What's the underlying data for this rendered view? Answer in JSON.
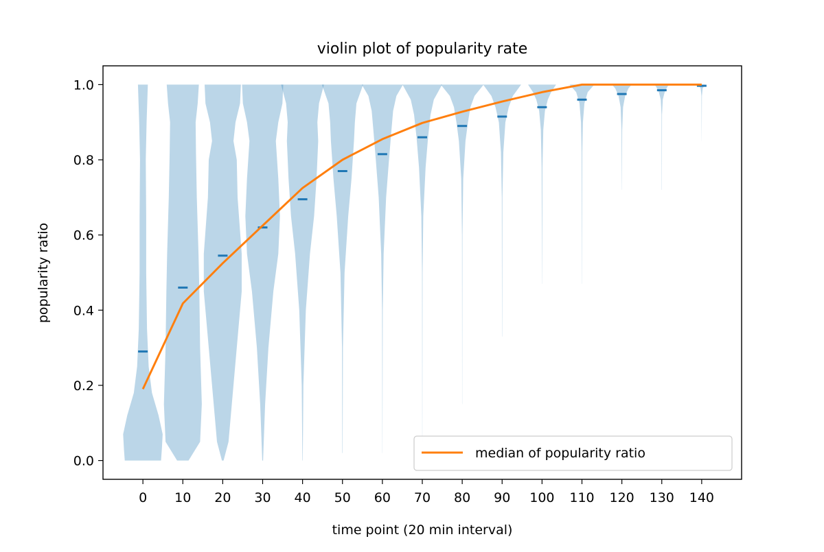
{
  "chart_data": {
    "type": "violin",
    "title": "violin plot of popularity rate",
    "xlabel": "time point (20 min interval)",
    "ylabel": "popularity ratio",
    "xlim": [
      -10,
      150
    ],
    "ylim": [
      -0.05,
      1.05
    ],
    "x_ticks": [
      0,
      10,
      20,
      30,
      40,
      50,
      60,
      70,
      80,
      90,
      100,
      110,
      120,
      130,
      140
    ],
    "x_tick_labels": [
      "0",
      "10",
      "20",
      "30",
      "40",
      "50",
      "60",
      "70",
      "80",
      "90",
      "100",
      "110",
      "120",
      "130",
      "140"
    ],
    "y_ticks": [
      0.0,
      0.2,
      0.4,
      0.6,
      0.8,
      1.0
    ],
    "y_tick_labels": [
      "0.0",
      "0.2",
      "0.4",
      "0.6",
      "0.8",
      "1.0"
    ],
    "grid": false,
    "legend": {
      "placement": "lower-right",
      "entries": [
        "median of popularity ratio"
      ]
    },
    "colors": {
      "violin": "#1f77b4",
      "median_line": "#ff7f0e",
      "mean_marker": "#1f77b4"
    },
    "violins": [
      {
        "x": 0,
        "mean": 0.29,
        "min": 0.0,
        "max": 1.0,
        "profile": [
          [
            0.0,
            2.2
          ],
          [
            0.03,
            2.3
          ],
          [
            0.07,
            2.4
          ],
          [
            0.12,
            1.9
          ],
          [
            0.18,
            1.1
          ],
          [
            0.25,
            0.7
          ],
          [
            0.35,
            0.5
          ],
          [
            0.5,
            0.4
          ],
          [
            0.65,
            0.4
          ],
          [
            0.8,
            0.35
          ],
          [
            0.9,
            0.45
          ],
          [
            1.0,
            0.6
          ]
        ]
      },
      {
        "x": 10,
        "mean": 0.46,
        "min": 0.0,
        "max": 1.0,
        "profile": [
          [
            0.0,
            0.7
          ],
          [
            0.05,
            2.1
          ],
          [
            0.15,
            2.3
          ],
          [
            0.3,
            2.1
          ],
          [
            0.45,
            2.0
          ],
          [
            0.55,
            1.9
          ],
          [
            0.7,
            1.7
          ],
          [
            0.82,
            1.6
          ],
          [
            0.9,
            1.55
          ],
          [
            0.95,
            1.8
          ],
          [
            1.0,
            1.95
          ]
        ]
      },
      {
        "x": 20,
        "mean": 0.545,
        "min": 0.0,
        "max": 1.0,
        "profile": [
          [
            0.0,
            0.1
          ],
          [
            0.05,
            0.7
          ],
          [
            0.15,
            1.1
          ],
          [
            0.3,
            1.7
          ],
          [
            0.45,
            2.3
          ],
          [
            0.55,
            2.3
          ],
          [
            0.7,
            1.8
          ],
          [
            0.8,
            1.7
          ],
          [
            0.85,
            1.3
          ],
          [
            0.9,
            1.55
          ],
          [
            0.95,
            2.1
          ],
          [
            1.0,
            2.2
          ]
        ]
      },
      {
        "x": 30,
        "mean": 0.62,
        "min": 0.0,
        "max": 1.0,
        "profile": [
          [
            0.0,
            0.05
          ],
          [
            0.15,
            0.3
          ],
          [
            0.3,
            0.7
          ],
          [
            0.45,
            1.3
          ],
          [
            0.55,
            1.9
          ],
          [
            0.65,
            2.1
          ],
          [
            0.75,
            1.9
          ],
          [
            0.85,
            1.6
          ],
          [
            0.9,
            1.9
          ],
          [
            0.95,
            2.4
          ],
          [
            1.0,
            2.5
          ]
        ]
      },
      {
        "x": 40,
        "mean": 0.695,
        "min": 0.0,
        "max": 1.0,
        "profile": [
          [
            0.0,
            0.02
          ],
          [
            0.2,
            0.1
          ],
          [
            0.4,
            0.4
          ],
          [
            0.55,
            0.9
          ],
          [
            0.65,
            1.4
          ],
          [
            0.75,
            1.7
          ],
          [
            0.85,
            1.9
          ],
          [
            0.9,
            1.8
          ],
          [
            0.95,
            2.0
          ],
          [
            1.0,
            2.6
          ]
        ]
      },
      {
        "x": 50,
        "mean": 0.77,
        "min": 0.02,
        "max": 1.0,
        "profile": [
          [
            0.02,
            0.02
          ],
          [
            0.3,
            0.05
          ],
          [
            0.5,
            0.25
          ],
          [
            0.65,
            0.7
          ],
          [
            0.75,
            1.1
          ],
          [
            0.85,
            1.4
          ],
          [
            0.9,
            1.5
          ],
          [
            0.95,
            1.7
          ],
          [
            1.0,
            2.5
          ]
        ]
      },
      {
        "x": 60,
        "mean": 0.815,
        "min": 0.02,
        "max": 1.0,
        "profile": [
          [
            0.02,
            0.01
          ],
          [
            0.4,
            0.04
          ],
          [
            0.55,
            0.15
          ],
          [
            0.7,
            0.45
          ],
          [
            0.8,
            0.8
          ],
          [
            0.88,
            1.1
          ],
          [
            0.93,
            1.3
          ],
          [
            0.97,
            1.7
          ],
          [
            1.0,
            2.5
          ]
        ]
      },
      {
        "x": 70,
        "mean": 0.86,
        "min": 0.05,
        "max": 1.0,
        "profile": [
          [
            0.05,
            0.01
          ],
          [
            0.5,
            0.03
          ],
          [
            0.65,
            0.12
          ],
          [
            0.78,
            0.4
          ],
          [
            0.86,
            0.7
          ],
          [
            0.92,
            1.0
          ],
          [
            0.96,
            1.4
          ],
          [
            1.0,
            2.4
          ]
        ]
      },
      {
        "x": 80,
        "mean": 0.89,
        "min": 0.15,
        "max": 1.0,
        "profile": [
          [
            0.15,
            0.01
          ],
          [
            0.6,
            0.03
          ],
          [
            0.75,
            0.12
          ],
          [
            0.85,
            0.4
          ],
          [
            0.9,
            0.7
          ],
          [
            0.94,
            1.0
          ],
          [
            0.97,
            1.5
          ],
          [
            1.0,
            2.6
          ]
        ]
      },
      {
        "x": 90,
        "mean": 0.915,
        "min": 0.33,
        "max": 1.0,
        "profile": [
          [
            0.33,
            0.01
          ],
          [
            0.7,
            0.04
          ],
          [
            0.82,
            0.15
          ],
          [
            0.9,
            0.4
          ],
          [
            0.94,
            0.8
          ],
          [
            0.97,
            1.3
          ],
          [
            1.0,
            2.3
          ]
        ]
      },
      {
        "x": 100,
        "mean": 0.94,
        "min": 0.47,
        "max": 1.0,
        "profile": [
          [
            0.47,
            0.01
          ],
          [
            0.78,
            0.05
          ],
          [
            0.88,
            0.15
          ],
          [
            0.93,
            0.35
          ],
          [
            0.96,
            0.7
          ],
          [
            0.98,
            1.1
          ],
          [
            1.0,
            1.7
          ]
        ]
      },
      {
        "x": 110,
        "mean": 0.96,
        "min": 0.47,
        "max": 1.0,
        "profile": [
          [
            0.47,
            0.01
          ],
          [
            0.82,
            0.04
          ],
          [
            0.9,
            0.12
          ],
          [
            0.95,
            0.3
          ],
          [
            0.98,
            0.7
          ],
          [
            1.0,
            1.5
          ]
        ]
      },
      {
        "x": 120,
        "mean": 0.975,
        "min": 0.72,
        "max": 1.0,
        "profile": [
          [
            0.72,
            0.01
          ],
          [
            0.88,
            0.04
          ],
          [
            0.94,
            0.15
          ],
          [
            0.97,
            0.4
          ],
          [
            0.99,
            0.8
          ],
          [
            1.0,
            1.2
          ]
        ]
      },
      {
        "x": 130,
        "mean": 0.985,
        "min": 0.72,
        "max": 1.0,
        "profile": [
          [
            0.72,
            0.01
          ],
          [
            0.92,
            0.03
          ],
          [
            0.96,
            0.12
          ],
          [
            0.98,
            0.35
          ],
          [
            0.995,
            0.7
          ],
          [
            1.0,
            0.9
          ]
        ]
      },
      {
        "x": 140,
        "mean": 0.997,
        "min": 0.85,
        "max": 1.0,
        "profile": [
          [
            0.85,
            0.005
          ],
          [
            0.97,
            0.03
          ],
          [
            0.99,
            0.12
          ],
          [
            1.0,
            0.4
          ]
        ]
      }
    ],
    "series": [
      {
        "name": "median of popularity ratio",
        "type": "line",
        "x": [
          0,
          10,
          20,
          30,
          40,
          50,
          60,
          70,
          80,
          90,
          100,
          110,
          120,
          130,
          140
        ],
        "y": [
          0.19,
          0.418,
          0.525,
          0.625,
          0.725,
          0.8,
          0.855,
          0.898,
          0.928,
          0.955,
          0.98,
          1.0,
          1.0,
          1.0,
          1.0
        ]
      }
    ]
  }
}
